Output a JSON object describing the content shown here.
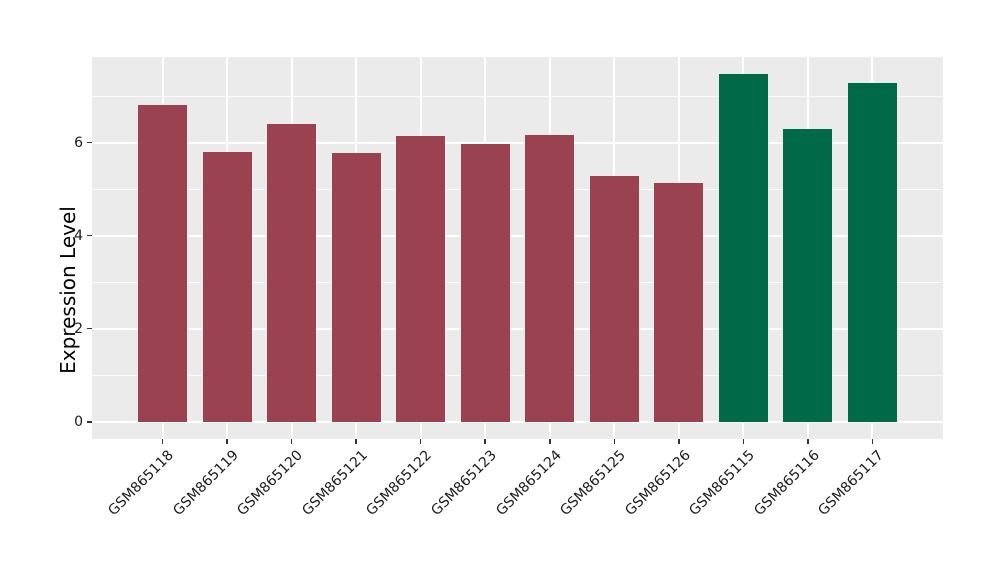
{
  "figure": {
    "background": "#ffffff",
    "plot_background": "#EBEBEB",
    "grid_color": "#ffffff",
    "tick_color": "#333333",
    "text_color": "#1a1a1a"
  },
  "chart_data": {
    "type": "bar",
    "title": "",
    "xlabel": "",
    "ylabel": "Expression Level",
    "categories": [
      "GSM865118",
      "GSM865119",
      "GSM865120",
      "GSM865121",
      "GSM865122",
      "GSM865123",
      "GSM865124",
      "GSM865125",
      "GSM865126",
      "GSM865115",
      "GSM865116",
      "GSM865117"
    ],
    "values": [
      6.81,
      5.79,
      6.4,
      5.77,
      6.15,
      5.98,
      6.16,
      5.28,
      5.13,
      7.47,
      6.29,
      7.28
    ],
    "bar_colors": [
      "#9B4250",
      "#9B4250",
      "#9B4250",
      "#9B4250",
      "#9B4250",
      "#9B4250",
      "#9B4250",
      "#9B4250",
      "#9B4250",
      "#006947",
      "#006947",
      "#006947"
    ],
    "group_colors": {
      "red_group": "#9B4250",
      "green_group": "#006947"
    },
    "yticks_major": [
      0,
      2,
      4,
      6
    ],
    "ytick_labels": [
      "0",
      "2",
      "4",
      "6"
    ],
    "yticks_minor": [
      1,
      3,
      5,
      7
    ],
    "ylim": [
      -0.37,
      7.84
    ],
    "x_padding": 0.595,
    "grid": true,
    "legend": null
  }
}
